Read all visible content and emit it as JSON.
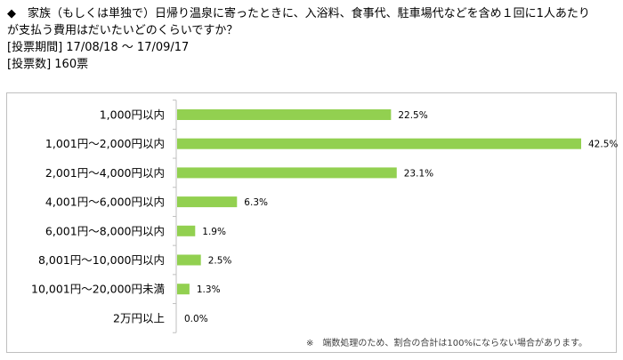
{
  "header": {
    "question_line1": "◆　家族（もしくは単独で）日帰り温泉に寄ったときに、入浴料、食事代、駐車場代などを含め１回に1人あたり",
    "question_line2": "が支払う費用はだいたいどのくらいですか？",
    "period": "[投票期間] 17/08/18 ～ 17/09/17",
    "votes": "[投票数] 160票"
  },
  "chart_data": {
    "type": "bar",
    "orientation": "horizontal",
    "categories": [
      "1,000円以内",
      "1,001円～2,000円以内",
      "2,001円～4,000円以内",
      "4,001円～6,000円以内",
      "6,001円～8,000円以内",
      "8,001円～10,000円以内",
      "10,001円～20,000円未満",
      "2万円以上"
    ],
    "values": [
      22.5,
      42.5,
      23.1,
      6.3,
      1.9,
      2.5,
      1.3,
      0.0
    ],
    "value_labels": [
      "22.5%",
      "42.5%",
      "23.1%",
      "6.3%",
      "1.9%",
      "2.5%",
      "1.3%",
      "0.0%"
    ],
    "xlim": [
      0,
      42.5
    ],
    "bar_color": "#92d050",
    "axis_color": "#bfbfbf",
    "grid": false
  },
  "footnote": "※　端数処理のため、割合の合計は100%にならない場合があります。"
}
